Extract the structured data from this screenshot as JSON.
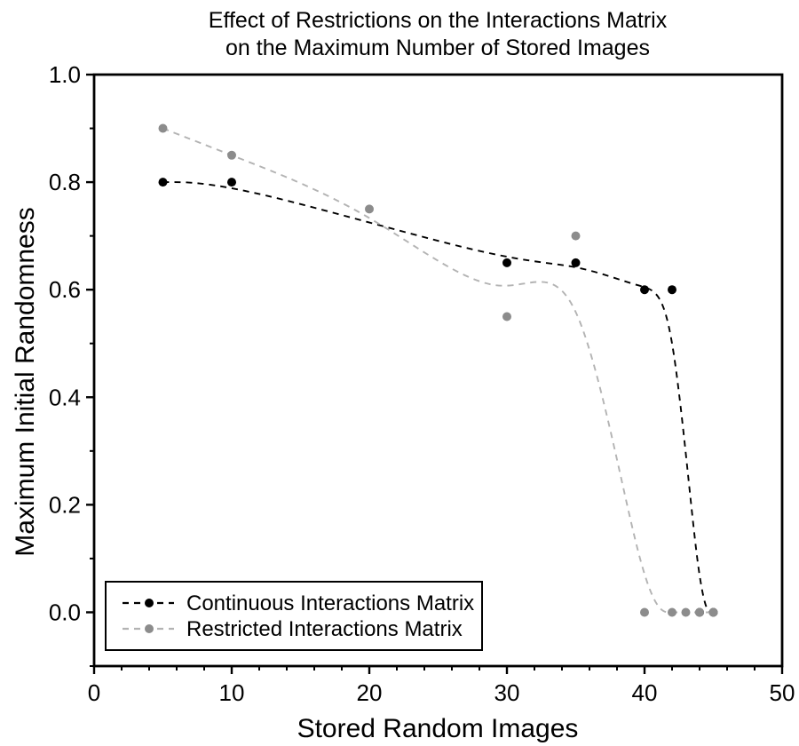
{
  "title": {
    "line1": "Effect of Restrictions on the Interactions Matrix",
    "line2": "on the Maximum Number of Stored Images"
  },
  "axes": {
    "x": {
      "title": "Stored Random Images",
      "range": [
        0,
        50
      ],
      "major_ticks": [
        {
          "v": 0,
          "label": "0"
        },
        {
          "v": 10,
          "label": "10"
        },
        {
          "v": 20,
          "label": "20"
        },
        {
          "v": 30,
          "label": "30"
        },
        {
          "v": 40,
          "label": "40"
        },
        {
          "v": 50,
          "label": "50"
        }
      ],
      "minor_ticks": [
        2,
        4,
        6,
        8,
        12,
        14,
        16,
        18,
        22,
        24,
        26,
        28,
        32,
        34,
        36,
        38,
        42,
        44,
        46,
        48
      ]
    },
    "y": {
      "title": "Maximum Initial Randomness",
      "range": [
        -0.1,
        1.0
      ],
      "major_ticks": [
        {
          "v": 0.0,
          "label": "0.0"
        },
        {
          "v": 0.2,
          "label": "0.2"
        },
        {
          "v": 0.4,
          "label": "0.4"
        },
        {
          "v": 0.6,
          "label": "0.6"
        },
        {
          "v": 0.8,
          "label": "0.8"
        },
        {
          "v": 1.0,
          "label": "1.0"
        }
      ],
      "minor_ticks": [
        -0.1,
        0.1,
        0.3,
        0.5,
        0.7,
        0.9
      ]
    }
  },
  "legend": {
    "items": [
      {
        "label": "Continuous Interactions Matrix",
        "marker_color": "#000000",
        "line_color": "#000000"
      },
      {
        "label": "Restricted Interactions Matrix",
        "marker_color": "#8c8c8c",
        "line_color": "#b3b3b3"
      }
    ]
  },
  "chart_data": {
    "type": "line",
    "line_style": "dashed",
    "smoothing": "b-spline",
    "grid": false,
    "legend_position": "bottom-left",
    "title": "Effect of Restrictions on the Interactions Matrix on the Maximum Number of Stored Images",
    "xlabel": "Stored Random Images",
    "ylabel": "Maximum Initial Randomness",
    "xlim": [
      0,
      50
    ],
    "ylim": [
      -0.1,
      1.0
    ],
    "series": [
      {
        "name": "Continuous Interactions Matrix",
        "marker_color": "#000000",
        "line_color": "#000000",
        "points": [
          [
            5,
            0.8
          ],
          [
            10,
            0.8
          ],
          [
            30,
            0.65
          ],
          [
            35,
            0.65
          ],
          [
            40,
            0.6
          ],
          [
            42,
            0.6
          ],
          [
            44,
            0.0
          ],
          [
            45,
            0.0
          ]
        ]
      },
      {
        "name": "Restricted Interactions Matrix",
        "marker_color": "#8c8c8c",
        "line_color": "#b3b3b3",
        "points": [
          [
            5,
            0.9
          ],
          [
            10,
            0.85
          ],
          [
            20,
            0.75
          ],
          [
            30,
            0.55
          ],
          [
            35,
            0.7
          ],
          [
            40,
            0.0
          ],
          [
            42,
            0.0
          ],
          [
            43,
            0.0
          ],
          [
            44,
            0.0
          ],
          [
            45,
            0.0
          ]
        ]
      }
    ]
  }
}
